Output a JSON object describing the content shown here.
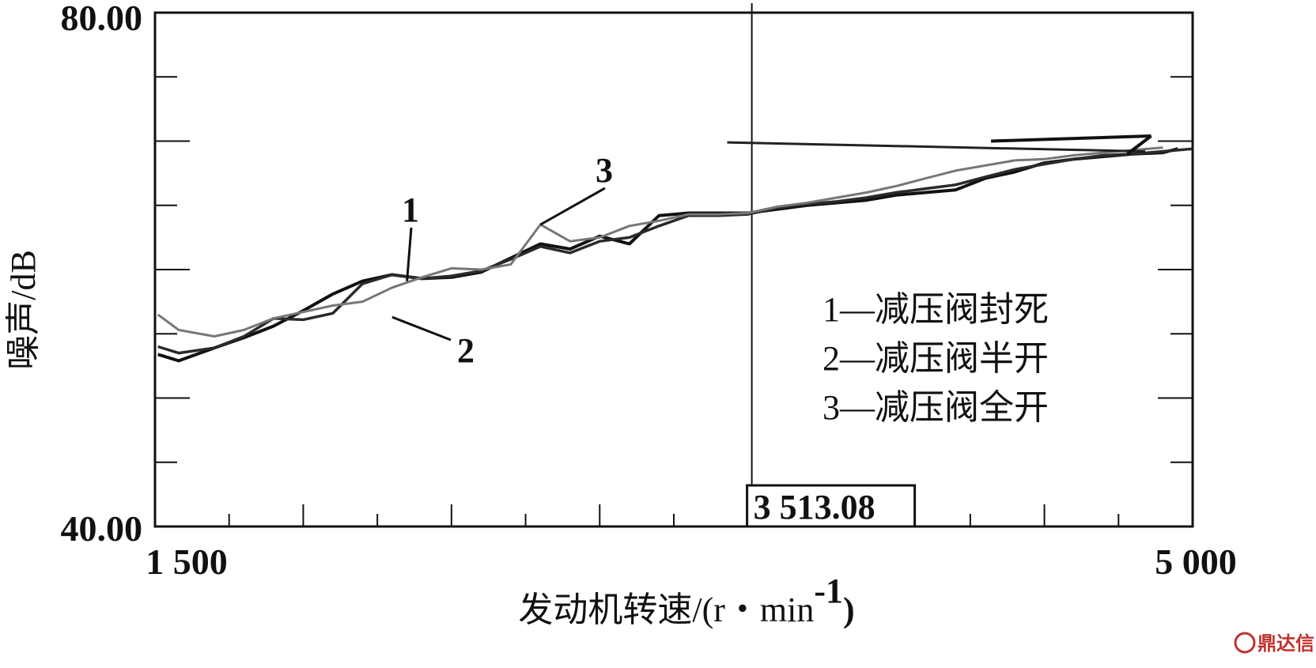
{
  "chart_data": {
    "type": "line",
    "xlabel": "发动机转速/(r・min",
    "xlabel_sup": "-1",
    "xlabel_close": ")",
    "ylabel": "噪声/dB",
    "xlim": [
      1500,
      5000
    ],
    "ylim": [
      40,
      80
    ],
    "x_tick_labels": [
      "1 500",
      "5 000"
    ],
    "y_tick_labels": [
      "80.00",
      "40.00"
    ],
    "grid": false,
    "cursor": {
      "x": 3513.08,
      "label": "3 513.08"
    },
    "legend": {
      "placement": "right",
      "entries": [
        "1—减压阀封死",
        "2—减压阀半开",
        "3—减压阀全开"
      ]
    },
    "series": [
      {
        "name": "1—减压阀封死",
        "tag": "1",
        "color": "#111111",
        "x": [
          1510,
          1580,
          1700,
          1800,
          1900,
          2000,
          2100,
          2200,
          2300,
          2400,
          2500,
          2600,
          2700,
          2800,
          2900,
          3000,
          3100,
          3200,
          3300,
          3400,
          3500,
          3600,
          3700,
          3800,
          3900,
          4000,
          4100,
          4200,
          4300,
          4400,
          4500,
          4600,
          4700,
          4800,
          4900,
          4950
        ],
        "y": [
          53.4,
          52.9,
          53.9,
          54.7,
          55.6,
          56.8,
          58.1,
          59.1,
          59.6,
          59.3,
          59.4,
          59.8,
          60.9,
          62.0,
          61.6,
          62.6,
          62.0,
          64.2,
          64.4,
          64.4,
          64.4,
          64.7,
          65.0,
          65.2,
          65.4,
          65.8,
          66.0,
          66.2,
          67.1,
          67.6,
          68.3,
          68.6,
          68.8,
          69.0,
          69.1,
          69.4
        ]
      },
      {
        "name": "2—减压阀半开",
        "tag": "2",
        "color": "#2a2a2a",
        "x": [
          1510,
          1580,
          1700,
          1800,
          1900,
          2000,
          2100,
          2200,
          2300,
          2400,
          2500,
          2600,
          2700,
          2800,
          2900,
          3000,
          3100,
          3200,
          3300,
          3400,
          3500,
          3600,
          3700,
          3800,
          3900,
          4000,
          4100,
          4200,
          4300,
          4400,
          4500,
          4600,
          4700,
          4800,
          4900,
          5000
        ],
        "y": [
          54.0,
          53.5,
          53.9,
          54.8,
          56.2,
          56.1,
          56.6,
          58.9,
          59.6,
          59.3,
          59.5,
          59.9,
          60.8,
          61.8,
          61.3,
          62.2,
          62.5,
          63.4,
          64.2,
          64.2,
          64.3,
          64.8,
          65.1,
          65.3,
          65.6,
          66.0,
          66.3,
          66.6,
          67.2,
          67.8,
          68.2,
          68.6,
          68.9,
          69.0,
          69.2,
          69.4
        ]
      },
      {
        "name": "3—减压阀全开",
        "tag": "3",
        "color": "#777777",
        "x": [
          1510,
          1580,
          1700,
          1800,
          1900,
          2000,
          2100,
          2200,
          2300,
          2400,
          2500,
          2600,
          2700,
          2800,
          2900,
          3000,
          3100,
          3200,
          3300,
          3400,
          3500,
          3600,
          3700,
          3800,
          3900,
          4000,
          4100,
          4200,
          4300,
          4400,
          4500,
          4600,
          4700,
          4800,
          4900
        ],
        "y": [
          56.5,
          55.3,
          54.8,
          55.3,
          56.2,
          56.7,
          57.2,
          57.5,
          58.6,
          59.4,
          60.1,
          60.0,
          60.4,
          63.5,
          62.2,
          62.5,
          63.4,
          63.8,
          64.3,
          64.3,
          64.4,
          64.9,
          65.2,
          65.6,
          66.0,
          66.5,
          67.1,
          67.7,
          68.1,
          68.5,
          68.6,
          68.9,
          69.1,
          69.3,
          69.5
        ]
      }
    ]
  },
  "watermark": {
    "text": "鼎达信",
    "icon": "dingdaxin-logo-icon",
    "color": "#c0322c"
  }
}
